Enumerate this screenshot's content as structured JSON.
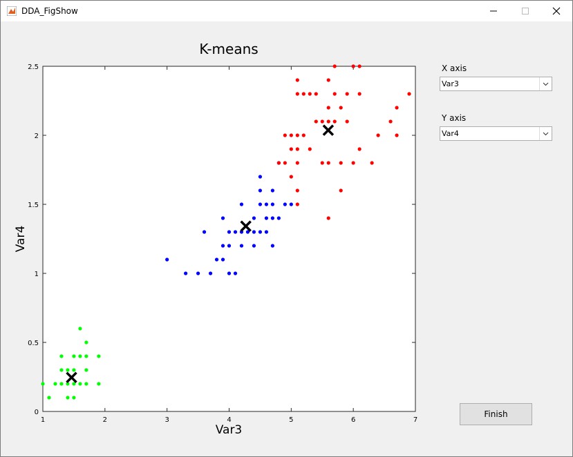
{
  "window": {
    "title": "DDA_FigShow"
  },
  "chart_data": {
    "type": "scatter",
    "title": "K-means",
    "x_label": "Var3",
    "y_label": "Var4",
    "xlim": [
      1,
      7
    ],
    "ylim": [
      0,
      2.5
    ],
    "xticks": [
      1,
      2,
      3,
      4,
      5,
      6,
      7
    ],
    "yticks": [
      0,
      0.5,
      1,
      1.5,
      2,
      2.5
    ],
    "series": [
      {
        "color": "#00ff00",
        "x": [
          1.0,
          1.1,
          1.2,
          1.3,
          1.3,
          1.3,
          1.4,
          1.4,
          1.4,
          1.5,
          1.5,
          1.5,
          1.5,
          1.6,
          1.6,
          1.6,
          1.7,
          1.7,
          1.7,
          1.7,
          1.9,
          1.9
        ],
        "y": [
          0.2,
          0.1,
          0.2,
          0.2,
          0.3,
          0.4,
          0.1,
          0.2,
          0.3,
          0.1,
          0.2,
          0.3,
          0.4,
          0.2,
          0.4,
          0.6,
          0.2,
          0.3,
          0.4,
          0.5,
          0.2,
          0.4
        ]
      },
      {
        "color": "#0000ff",
        "x": [
          3.0,
          3.3,
          3.5,
          3.7,
          3.6,
          3.8,
          3.9,
          3.9,
          3.9,
          4.0,
          4.0,
          4.0,
          4.1,
          4.1,
          4.2,
          4.2,
          4.2,
          4.3,
          4.4,
          4.4,
          4.4,
          4.5,
          4.5,
          4.5,
          4.5,
          4.6,
          4.6,
          4.6,
          4.7,
          4.7,
          4.7,
          4.7,
          4.8,
          4.8,
          4.9,
          5.0
        ],
        "y": [
          1.1,
          1.0,
          1.0,
          1.0,
          1.3,
          1.1,
          1.1,
          1.2,
          1.4,
          1.0,
          1.2,
          1.3,
          1.0,
          1.3,
          1.2,
          1.3,
          1.5,
          1.3,
          1.2,
          1.3,
          1.4,
          1.3,
          1.5,
          1.6,
          1.7,
          1.3,
          1.4,
          1.5,
          1.2,
          1.4,
          1.5,
          1.6,
          1.4,
          1.8,
          1.5,
          1.5
        ]
      },
      {
        "color": "#ff0000",
        "x": [
          4.8,
          4.9,
          4.9,
          5.0,
          5.0,
          5.0,
          5.1,
          5.1,
          5.1,
          5.1,
          5.1,
          5.1,
          5.1,
          5.2,
          5.2,
          5.3,
          5.3,
          5.4,
          5.4,
          5.5,
          5.5,
          5.6,
          5.6,
          5.6,
          5.6,
          5.6,
          5.7,
          5.7,
          5.7,
          5.8,
          5.8,
          5.8,
          5.9,
          5.9,
          6.0,
          6.0,
          6.1,
          6.1,
          6.1,
          6.3,
          6.4,
          6.6,
          6.7,
          6.7,
          6.9
        ],
        "y": [
          1.8,
          1.8,
          2.0,
          1.7,
          1.9,
          2.0,
          1.5,
          1.6,
          1.8,
          1.9,
          2.0,
          2.3,
          2.4,
          2.0,
          2.3,
          1.9,
          2.3,
          2.1,
          2.3,
          1.8,
          2.1,
          1.4,
          1.8,
          2.1,
          2.2,
          2.4,
          2.1,
          2.3,
          2.5,
          1.6,
          1.8,
          2.2,
          2.1,
          2.3,
          1.8,
          2.5,
          1.9,
          2.3,
          2.5,
          1.8,
          2.0,
          2.1,
          2.0,
          2.2,
          2.3
        ]
      }
    ],
    "centroids": {
      "color": "#000000",
      "x": [
        1.462,
        4.269,
        5.596
      ],
      "y": [
        0.246,
        1.342,
        2.037
      ]
    }
  },
  "controls": {
    "x_axis_label": "X axis",
    "x_axis_value": "Var3",
    "y_axis_label": "Y axis",
    "y_axis_value": "Var4",
    "finish": "Finish"
  }
}
